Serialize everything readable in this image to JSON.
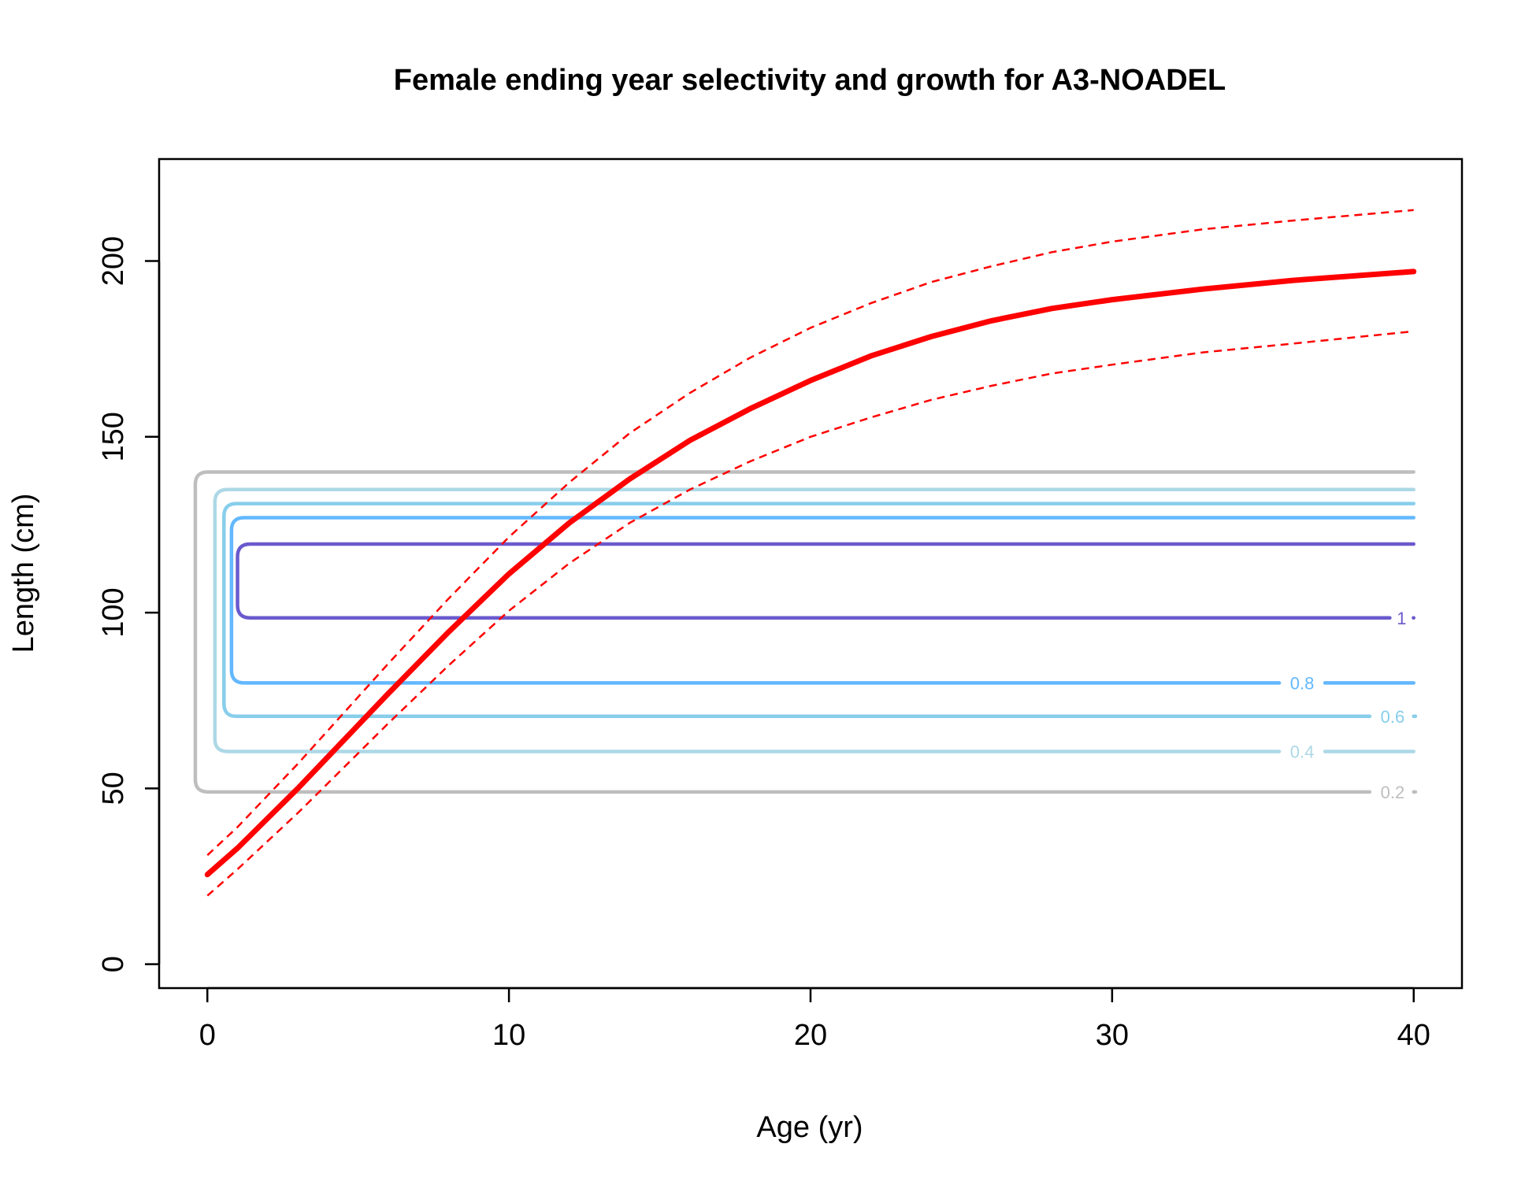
{
  "chart_data": {
    "type": "line",
    "title": "Female ending year selectivity and growth for A3-NOADEL",
    "xlabel": "Age (yr)",
    "ylabel": "Length (cm)",
    "xlim": [
      -1.6,
      41.6
    ],
    "ylim": [
      -6.8,
      229
    ],
    "x_ticks": [
      0,
      10,
      20,
      30,
      40
    ],
    "y_ticks": [
      0,
      50,
      100,
      150,
      200
    ],
    "grid": false,
    "growth": {
      "color": "#ff0000",
      "mean": [
        [
          0,
          25.5
        ],
        [
          1,
          33
        ],
        [
          2,
          41.5
        ],
        [
          3,
          50
        ],
        [
          4,
          59
        ],
        [
          5,
          68
        ],
        [
          6,
          77
        ],
        [
          8,
          94.5
        ],
        [
          10,
          111
        ],
        [
          12,
          125.5
        ],
        [
          14,
          138
        ],
        [
          16,
          149
        ],
        [
          18,
          158
        ],
        [
          20,
          166
        ],
        [
          22,
          173
        ],
        [
          24,
          178.5
        ],
        [
          26,
          183
        ],
        [
          28,
          186.5
        ],
        [
          30,
          189
        ],
        [
          33,
          192
        ],
        [
          36,
          194.5
        ],
        [
          40,
          197
        ]
      ],
      "upper": [
        [
          0,
          31
        ],
        [
          1,
          39
        ],
        [
          2,
          48
        ],
        [
          3,
          57
        ],
        [
          4,
          66.5
        ],
        [
          5,
          76
        ],
        [
          6,
          85.5
        ],
        [
          8,
          104
        ],
        [
          10,
          121.5
        ],
        [
          12,
          137
        ],
        [
          14,
          151
        ],
        [
          16,
          162.5
        ],
        [
          18,
          172.5
        ],
        [
          20,
          181
        ],
        [
          22,
          188
        ],
        [
          24,
          194
        ],
        [
          26,
          198.5
        ],
        [
          28,
          202.5
        ],
        [
          30,
          205.5
        ],
        [
          33,
          209
        ],
        [
          36,
          211.5
        ],
        [
          40,
          214.5
        ]
      ],
      "lower": [
        [
          0,
          19.5
        ],
        [
          1,
          27
        ],
        [
          2,
          35
        ],
        [
          3,
          43
        ],
        [
          4,
          51.5
        ],
        [
          5,
          60
        ],
        [
          6,
          68.5
        ],
        [
          8,
          85
        ],
        [
          10,
          100.5
        ],
        [
          12,
          114
        ],
        [
          14,
          125.5
        ],
        [
          16,
          135
        ],
        [
          18,
          143
        ],
        [
          20,
          150
        ],
        [
          22,
          155.5
        ],
        [
          24,
          160.5
        ],
        [
          26,
          164.5
        ],
        [
          28,
          168
        ],
        [
          30,
          170.5
        ],
        [
          33,
          174
        ],
        [
          36,
          176.5
        ],
        [
          40,
          180
        ]
      ]
    },
    "contours": [
      {
        "level": "0.2",
        "color": "#bebebe",
        "low": 49,
        "high": 140,
        "left": -0.4,
        "label_x": 39.3
      },
      {
        "level": "0.4",
        "color": "#add8e6",
        "low": 60.5,
        "high": 135,
        "left": 0.25,
        "label_x": 36.3
      },
      {
        "level": "0.6",
        "color": "#87ceeb",
        "low": 70.5,
        "high": 131,
        "left": 0.55,
        "label_x": 39.3
      },
      {
        "level": "0.8",
        "color": "#63b8ff",
        "low": 80,
        "high": 127,
        "left": 0.8,
        "label_x": 36.3
      },
      {
        "level": "1",
        "color": "#6a5acd",
        "low": 98.5,
        "high": 119.5,
        "left": 1.0,
        "label_x": 39.6
      }
    ]
  }
}
